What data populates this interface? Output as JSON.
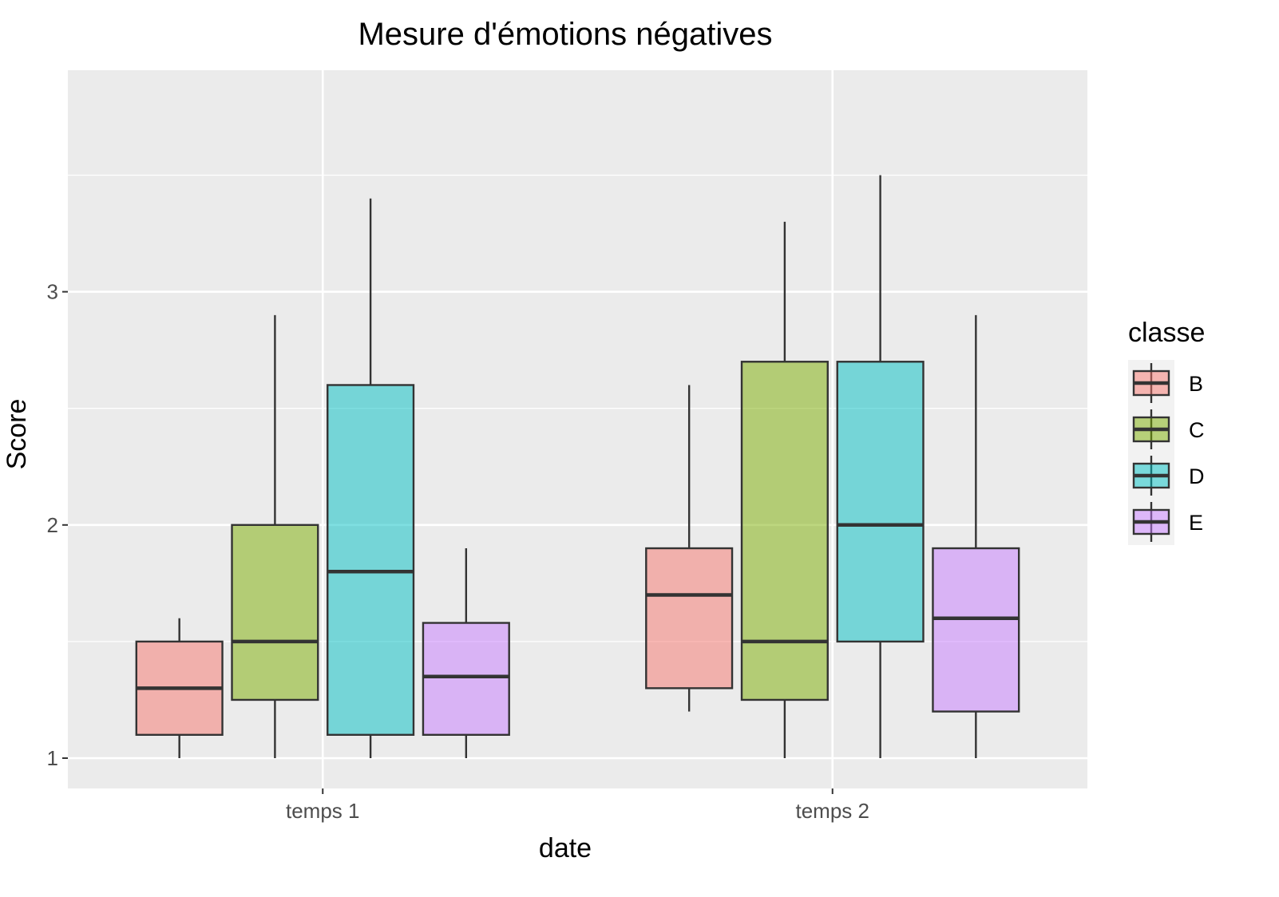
{
  "chart_data": {
    "type": "boxplot",
    "title": "Mesure d'émotions négatives",
    "xlabel": "date",
    "ylabel": "Score",
    "categories": [
      "temps 1",
      "temps 2"
    ],
    "y_ticks": [
      1,
      2,
      3
    ],
    "ylim": [
      0.87,
      3.95
    ],
    "grid": true,
    "legend": {
      "title": "classe",
      "position": "right"
    },
    "series": [
      {
        "name": "B",
        "color": "#F8766D",
        "boxes": [
          {
            "min": 1.0,
            "q1": 1.1,
            "median": 1.3,
            "q3": 1.5,
            "max": 1.6
          },
          {
            "min": 1.2,
            "q1": 1.3,
            "median": 1.7,
            "q3": 1.9,
            "max": 2.6
          }
        ]
      },
      {
        "name": "C",
        "color": "#7CAE00",
        "boxes": [
          {
            "min": 1.0,
            "q1": 1.25,
            "median": 1.5,
            "q3": 2.0,
            "max": 2.9
          },
          {
            "min": 1.0,
            "q1": 1.25,
            "median": 1.5,
            "q3": 2.7,
            "max": 3.3
          }
        ]
      },
      {
        "name": "D",
        "color": "#00BFC4",
        "boxes": [
          {
            "min": 1.0,
            "q1": 1.1,
            "median": 1.8,
            "q3": 2.6,
            "max": 3.4
          },
          {
            "min": 1.0,
            "q1": 1.5,
            "median": 2.0,
            "q3": 2.7,
            "max": 3.5
          }
        ]
      },
      {
        "name": "E",
        "color": "#C77CFF",
        "boxes": [
          {
            "min": 1.0,
            "q1": 1.1,
            "median": 1.35,
            "q3": 1.58,
            "max": 1.9
          },
          {
            "min": 1.0,
            "q1": 1.2,
            "median": 1.6,
            "q3": 1.9,
            "max": 2.9
          }
        ]
      }
    ]
  }
}
